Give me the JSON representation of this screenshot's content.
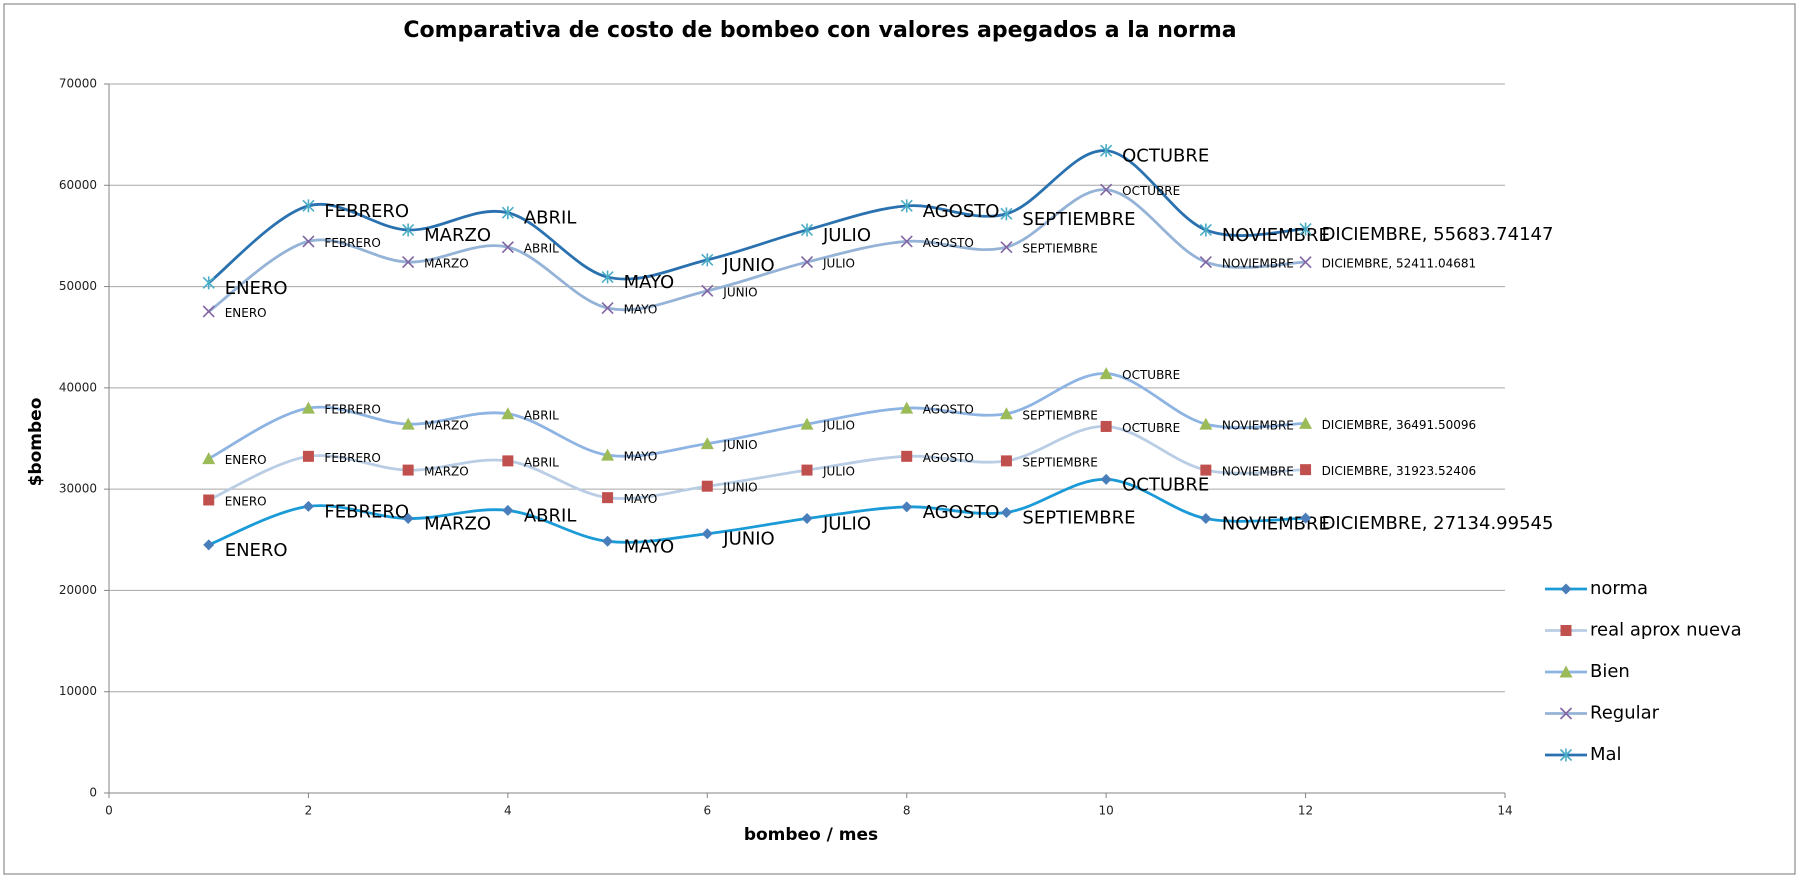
{
  "chart_data": {
    "type": "scatter",
    "title": "Comparativa de costo de bombeo con valores apegados a la norma",
    "xlabel": "bombeo / mes",
    "ylabel": "$bombeo",
    "x": [
      1,
      2,
      3,
      4,
      5,
      6,
      7,
      8,
      9,
      10,
      11,
      12
    ],
    "xlim": [
      0,
      14
    ],
    "xticks": [
      0,
      2,
      4,
      6,
      8,
      10,
      12,
      14
    ],
    "ylim": [
      0,
      70000
    ],
    "yticks": [
      0,
      10000,
      20000,
      30000,
      40000,
      50000,
      60000,
      70000
    ],
    "grid": true,
    "smooth": true,
    "legend": "right",
    "series": [
      {
        "name": "norma",
        "color": "#1a9bd7",
        "marker": "diamond",
        "marker_color": "#4a7ebb",
        "values": [
          24500,
          28300,
          27100,
          27900,
          24850,
          25600,
          27100,
          28250,
          27700,
          30970,
          27100,
          27134.99545
        ],
        "value_labels": [
          "ENERO",
          "FEBRERO",
          "MARZO",
          "ABRIL",
          "MAYO",
          "JUNIO",
          "JULIO",
          "AGOSTO",
          "SEPTIEMBRE",
          "OCTUBRE",
          "NOVIEMBRE",
          "DICIEMBRE, 27134.99545"
        ]
      },
      {
        "name": "real aprox nueva",
        "color": "#b9cde5",
        "marker": "square",
        "marker_color": "#c0504d",
        "values": [
          28930,
          33240,
          31880,
          32790,
          29160,
          30290,
          31880,
          33240,
          32790,
          36190,
          31880,
          31923.52406
        ],
        "value_labels": [
          "ENERO",
          "FEBRERO",
          "MARZO",
          "ABRIL",
          "MAYO",
          "JUNIO",
          "JULIO",
          "AGOSTO",
          "SEPTIEMBRE",
          "OCTUBRE",
          "NOVIEMBRE",
          "DICIEMBRE, 31923.52406"
        ]
      },
      {
        "name": "Bien",
        "color": "#8eb4e3",
        "marker": "triangle",
        "marker_color": "#9bbb59",
        "values": [
          33010,
          38000,
          36420,
          37440,
          33360,
          34490,
          36420,
          38000,
          37440,
          41410,
          36420,
          36491.50096
        ],
        "value_labels": [
          "ENERO",
          "FEBRERO",
          "MARZO",
          "ABRIL",
          "MAYO",
          "JUNIO",
          "JULIO",
          "AGOSTO",
          "SEPTIEMBRE",
          "OCTUBRE",
          "NOVIEMBRE",
          "DICIEMBRE, 36491.50096"
        ]
      },
      {
        "name": "Regular",
        "color": "#95b3d7",
        "marker": "x",
        "marker_color": "#8064a2",
        "values": [
          47540,
          54460,
          52420,
          53890,
          47880,
          49580,
          52420,
          54460,
          53890,
          59560,
          52420,
          52411.04681
        ],
        "value_labels": [
          "ENERO",
          "FEBRERO",
          "MARZO",
          "ABRIL",
          "MAYO",
          "JUNIO",
          "JULIO",
          "AGOSTO",
          "SEPTIEMBRE",
          "OCTUBRE",
          "NOVIEMBRE",
          "DICIEMBRE, 52411.04681"
        ]
      },
      {
        "name": "Mal",
        "color": "#2a71b0",
        "marker": "star",
        "marker_color": "#4bacc6",
        "values": [
          50370,
          57970,
          55590,
          57290,
          50940,
          52640,
          55590,
          57970,
          57180,
          63420,
          55590,
          55683.74147
        ],
        "value_labels": [
          "ENERO",
          "FEBRERO",
          "MARZO",
          "ABRIL",
          "MAYO",
          "JUNIO",
          "JULIO",
          "AGOSTO",
          "SEPTIEMBRE",
          "OCTUBRE",
          "NOVIEMBRE",
          "DICIEMBRE, 55683.74147"
        ]
      }
    ]
  }
}
